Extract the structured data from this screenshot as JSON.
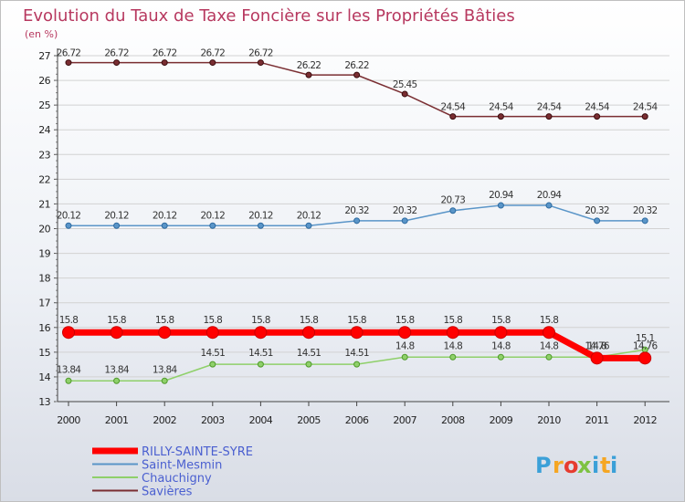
{
  "chart_data": {
    "type": "line",
    "title": "Evolution du Taux de Taxe Foncière sur les Propriétés Bâties",
    "subtitle": "(en %)",
    "xlabel": "",
    "ylabel": "",
    "categories": [
      "2000",
      "2001",
      "2002",
      "2003",
      "2004",
      "2005",
      "2006",
      "2007",
      "2008",
      "2009",
      "2010",
      "2011",
      "2012"
    ],
    "ylim": [
      13,
      27
    ],
    "yticks": [
      "13",
      "14",
      "15",
      "16",
      "17",
      "18",
      "19",
      "20",
      "21",
      "22",
      "23",
      "24",
      "25",
      "26",
      "27"
    ],
    "series": [
      {
        "name": "RILLY-SAINTE-SYRE",
        "color": "#ff0000",
        "values": [
          15.8,
          15.8,
          15.8,
          15.8,
          15.8,
          15.8,
          15.8,
          15.8,
          15.8,
          15.8,
          15.8,
          14.76,
          14.76
        ],
        "labels": [
          "15.8",
          "15.8",
          "15.8",
          "15.8",
          "15.8",
          "15.8",
          "15.8",
          "15.8",
          "15.8",
          "15.8",
          "15.8",
          "14.76",
          "14.76"
        ]
      },
      {
        "name": "Saint-Mesmin",
        "color": "#5a95c8",
        "values": [
          20.12,
          20.12,
          20.12,
          20.12,
          20.12,
          20.12,
          20.32,
          20.32,
          20.73,
          20.94,
          20.94,
          20.32,
          20.32
        ],
        "labels": [
          "20.12",
          "20.12",
          "20.12",
          "20.12",
          "20.12",
          "20.12",
          "20.32",
          "20.32",
          "20.73",
          "20.94",
          "20.94",
          "20.32",
          "20.32"
        ]
      },
      {
        "name": "Chauchigny",
        "color": "#8fd06a",
        "values": [
          13.84,
          13.84,
          13.84,
          14.51,
          14.51,
          14.51,
          14.51,
          14.8,
          14.8,
          14.8,
          14.8,
          14.8,
          15.1
        ],
        "labels": [
          "13.84",
          "13.84",
          "13.84",
          "14.51",
          "14.51",
          "14.51",
          "14.51",
          "14.8",
          "14.8",
          "14.8",
          "14.8",
          "14.8",
          "15.1"
        ]
      },
      {
        "name": "Savières",
        "color": "#7a2e32",
        "values": [
          26.72,
          26.72,
          26.72,
          26.72,
          26.72,
          26.22,
          26.22,
          25.45,
          24.54,
          24.54,
          24.54,
          24.54,
          24.54
        ],
        "labels": [
          "26.72",
          "26.72",
          "26.72",
          "26.72",
          "26.72",
          "26.22",
          "26.22",
          "25.45",
          "24.54",
          "24.54",
          "24.54",
          "24.54",
          "24.54"
        ]
      }
    ],
    "legend_position": "bottom-left"
  },
  "brand": {
    "letters": [
      "P",
      "r",
      "o",
      "x",
      "i",
      "t",
      "i"
    ],
    "colors": [
      "#3ba0d8",
      "#f5a623",
      "#e63c2f",
      "#7dc242",
      "#3ba0d8",
      "#f5a623",
      "#3ba0d8"
    ]
  }
}
